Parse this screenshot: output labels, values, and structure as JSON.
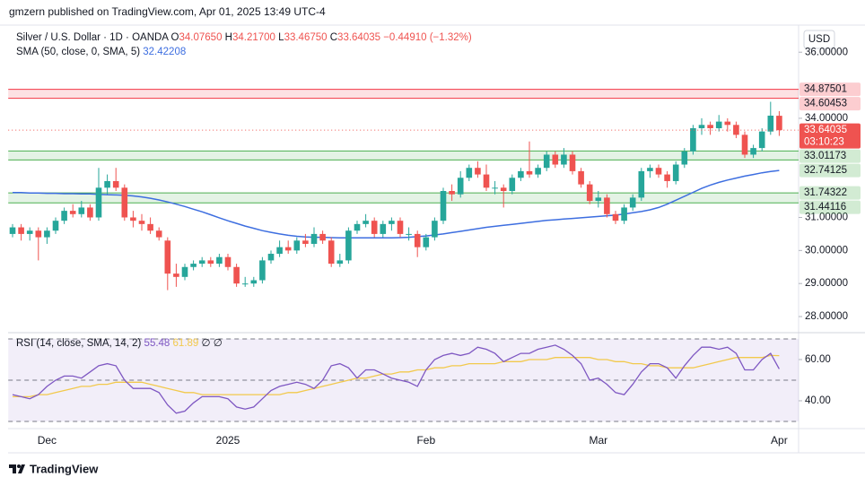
{
  "header": "gmzern published on TradingView.com, Apr 01, 2025 13:49 UTC-4",
  "footer": "TradingView",
  "chart_data": [
    {
      "type": "candlestick",
      "title": "Silver / U.S. Dollar · 1D · OANDA",
      "legend_ohlc": [
        {
          "key": "O",
          "value": "34.07650"
        },
        {
          "key": "H",
          "value": "34.21700"
        },
        {
          "key": "L",
          "value": "33.46750"
        },
        {
          "key": "C",
          "value": "33.64035"
        }
      ],
      "change": "−0.44910 (−1.32%)",
      "currency": "USD",
      "countdown": "03:10:23",
      "up_color": "#26a69a",
      "down_color": "#ef5350",
      "categories": [
        null,
        null,
        null,
        null,
        "Dec",
        null,
        null,
        null,
        null,
        null,
        null,
        null,
        null,
        null,
        null,
        null,
        null,
        null,
        null,
        null,
        null,
        null,
        null,
        null,
        null,
        "2025",
        null,
        null,
        null,
        null,
        null,
        null,
        null,
        null,
        null,
        null,
        null,
        null,
        null,
        null,
        null,
        null,
        null,
        null,
        null,
        null,
        null,
        null,
        "Feb",
        null,
        null,
        null,
        null,
        null,
        null,
        null,
        null,
        null,
        null,
        null,
        null,
        null,
        null,
        null,
        null,
        null,
        null,
        null,
        "Mar",
        null,
        null,
        null,
        null,
        null,
        null,
        null,
        null,
        null,
        null,
        null,
        null,
        null,
        null,
        null,
        null,
        null,
        null,
        null,
        null,
        "Apr"
      ],
      "ohlc": [
        [
          30.5,
          30.8,
          30.4,
          30.7
        ],
        [
          30.7,
          30.8,
          30.3,
          30.5
        ],
        [
          30.5,
          30.7,
          30.3,
          30.6
        ],
        [
          30.6,
          30.7,
          29.7,
          30.4
        ],
        [
          30.4,
          30.7,
          30.2,
          30.6
        ],
        [
          30.6,
          31.0,
          30.5,
          30.9
        ],
        [
          30.9,
          31.3,
          30.8,
          31.2
        ],
        [
          31.2,
          31.4,
          31.0,
          31.1
        ],
        [
          31.1,
          31.5,
          31.0,
          31.3
        ],
        [
          31.3,
          31.4,
          30.9,
          31.0
        ],
        [
          31.0,
          32.5,
          30.9,
          31.9
        ],
        [
          31.9,
          32.3,
          31.7,
          32.1
        ],
        [
          32.1,
          32.5,
          31.8,
          31.9
        ],
        [
          31.9,
          32.0,
          30.9,
          31.0
        ],
        [
          31.0,
          31.2,
          30.7,
          30.9
        ],
        [
          30.9,
          31.1,
          30.6,
          30.8
        ],
        [
          30.8,
          31.0,
          30.5,
          30.6
        ],
        [
          30.6,
          30.7,
          30.3,
          30.4
        ],
        [
          30.3,
          30.4,
          28.8,
          29.3
        ],
        [
          29.3,
          29.6,
          28.9,
          29.2
        ],
        [
          29.2,
          29.6,
          29.1,
          29.5
        ],
        [
          29.5,
          29.7,
          29.4,
          29.6
        ],
        [
          29.6,
          29.8,
          29.5,
          29.7
        ],
        [
          29.7,
          29.8,
          29.5,
          29.6
        ],
        [
          29.6,
          29.9,
          29.5,
          29.8
        ],
        [
          29.8,
          29.9,
          29.4,
          29.5
        ],
        [
          29.5,
          29.6,
          28.9,
          29.0
        ],
        [
          29.0,
          29.2,
          28.9,
          29.0
        ],
        [
          29.0,
          29.2,
          28.9,
          29.1
        ],
        [
          29.1,
          29.8,
          29.0,
          29.7
        ],
        [
          29.7,
          30.0,
          29.6,
          29.9
        ],
        [
          29.9,
          30.3,
          29.8,
          30.1
        ],
        [
          30.1,
          30.3,
          29.9,
          30.0
        ],
        [
          30.0,
          30.4,
          29.9,
          30.3
        ],
        [
          30.3,
          30.5,
          30.1,
          30.2
        ],
        [
          30.2,
          30.7,
          30.1,
          30.5
        ],
        [
          30.5,
          30.6,
          30.2,
          30.3
        ],
        [
          30.3,
          30.4,
          29.5,
          29.6
        ],
        [
          29.6,
          29.9,
          29.5,
          29.7
        ],
        [
          29.7,
          30.7,
          29.6,
          30.6
        ],
        [
          30.6,
          30.9,
          30.5,
          30.8
        ],
        [
          30.8,
          31.1,
          30.7,
          30.9
        ],
        [
          30.9,
          31.0,
          30.4,
          30.5
        ],
        [
          30.5,
          30.9,
          30.4,
          30.8
        ],
        [
          30.8,
          31.0,
          30.6,
          30.9
        ],
        [
          30.9,
          31.0,
          30.4,
          30.5
        ],
        [
          30.5,
          30.7,
          30.3,
          30.5
        ],
        [
          30.5,
          30.6,
          29.8,
          30.1
        ],
        [
          30.1,
          30.5,
          30.0,
          30.4
        ],
        [
          30.4,
          31.0,
          30.3,
          30.9
        ],
        [
          30.9,
          31.9,
          30.8,
          31.8
        ],
        [
          31.8,
          32.0,
          31.5,
          31.7
        ],
        [
          31.7,
          32.4,
          31.6,
          32.2
        ],
        [
          32.2,
          32.6,
          32.1,
          32.5
        ],
        [
          32.5,
          32.7,
          32.2,
          32.3
        ],
        [
          32.3,
          32.6,
          31.8,
          31.9
        ],
        [
          31.9,
          32.1,
          31.7,
          31.9
        ],
        [
          31.9,
          32.0,
          31.3,
          31.8
        ],
        [
          31.8,
          32.3,
          31.7,
          32.2
        ],
        [
          32.2,
          32.5,
          32.1,
          32.4
        ],
        [
          32.4,
          33.3,
          32.2,
          32.3
        ],
        [
          32.3,
          32.6,
          32.2,
          32.5
        ],
        [
          32.5,
          33.0,
          32.4,
          32.9
        ],
        [
          32.9,
          33.0,
          32.5,
          32.6
        ],
        [
          32.6,
          33.1,
          32.5,
          32.9
        ],
        [
          32.9,
          33.0,
          32.3,
          32.4
        ],
        [
          32.4,
          32.5,
          31.9,
          32.0
        ],
        [
          32.0,
          32.1,
          31.4,
          31.5
        ],
        [
          31.5,
          31.8,
          31.3,
          31.6
        ],
        [
          31.6,
          31.7,
          31.0,
          31.1
        ],
        [
          31.1,
          31.2,
          30.8,
          30.9
        ],
        [
          30.9,
          31.4,
          30.8,
          31.3
        ],
        [
          31.3,
          31.7,
          31.2,
          31.6
        ],
        [
          31.6,
          32.5,
          31.5,
          32.4
        ],
        [
          32.4,
          32.6,
          32.2,
          32.5
        ],
        [
          32.5,
          32.6,
          32.2,
          32.3
        ],
        [
          32.3,
          32.4,
          31.9,
          32.1
        ],
        [
          32.1,
          32.7,
          32.0,
          32.6
        ],
        [
          32.6,
          33.1,
          32.5,
          33.0
        ],
        [
          33.0,
          33.8,
          32.9,
          33.7
        ],
        [
          33.7,
          34.0,
          33.5,
          33.8
        ],
        [
          33.8,
          33.9,
          33.5,
          33.7
        ],
        [
          33.7,
          34.1,
          33.6,
          33.9
        ],
        [
          33.9,
          34.0,
          33.6,
          33.8
        ],
        [
          33.8,
          33.9,
          33.4,
          33.5
        ],
        [
          33.5,
          33.6,
          32.8,
          32.9
        ],
        [
          32.9,
          33.2,
          32.8,
          33.1
        ],
        [
          33.1,
          33.7,
          33.0,
          33.6
        ],
        [
          33.6,
          34.5,
          33.5,
          34.08
        ],
        [
          34.0765,
          34.217,
          33.4675,
          33.64035
        ]
      ],
      "series": [
        {
          "name": "SMA (50, close, 0, SMA, 5)",
          "color": "#3d6ee0",
          "values": [
            31.75,
            31.75,
            31.74,
            31.74,
            31.73,
            31.73,
            31.72,
            31.72,
            31.71,
            31.71,
            31.7,
            31.69,
            31.68,
            31.67,
            31.65,
            31.62,
            31.58,
            31.53,
            31.47,
            31.4,
            31.33,
            31.25,
            31.17,
            31.08,
            30.99,
            30.9,
            30.82,
            30.74,
            30.67,
            30.6,
            30.55,
            30.5,
            30.46,
            30.43,
            30.41,
            30.4,
            30.4,
            30.39,
            30.38,
            30.38,
            30.38,
            30.38,
            30.38,
            30.38,
            30.38,
            30.39,
            30.4,
            30.42,
            30.44,
            30.47,
            30.5,
            30.54,
            30.58,
            30.62,
            30.66,
            30.7,
            30.73,
            30.76,
            30.79,
            30.82,
            30.85,
            30.88,
            30.91,
            30.93,
            30.95,
            30.97,
            30.99,
            31.01,
            31.03,
            31.05,
            31.07,
            31.1,
            31.14,
            31.18,
            31.23,
            31.3,
            31.4,
            31.52,
            31.64,
            31.76,
            31.88,
            31.98,
            32.06,
            32.13,
            32.19,
            32.25,
            32.3,
            32.35,
            32.39,
            32.42208
          ]
        }
      ],
      "levels": [
        {
          "upper": 34.87501,
          "lower": 34.60453,
          "color": "#f23645"
        },
        {
          "upper": 33.01173,
          "lower": 32.74125,
          "color": "#4caf50"
        },
        {
          "upper": 31.74322,
          "lower": 31.44116,
          "color": "#4caf50"
        }
      ],
      "ylim": [
        27.54,
        36.82
      ],
      "yticks": [
        {
          "value": 36,
          "label": "36.00000"
        },
        {
          "value": 34,
          "label": "34.00000"
        },
        {
          "value": 31,
          "label": "31.00000"
        },
        {
          "value": 30,
          "label": "30.00000"
        },
        {
          "value": 29,
          "label": "29.00000"
        },
        {
          "value": 28,
          "label": "28.00000"
        }
      ]
    },
    {
      "type": "line",
      "legend_extra": "∅ ∅",
      "series": [
        {
          "name": "RSI (14, close, SMA, 14, 2)",
          "color": "#7e57c2",
          "values": [
            43,
            42,
            41,
            43,
            47,
            50,
            52,
            52,
            51,
            54,
            57,
            58,
            57,
            50,
            46,
            46,
            46,
            44,
            38,
            34,
            35,
            39,
            42,
            42,
            42,
            41,
            37,
            36,
            37,
            41,
            45,
            47,
            48,
            49,
            48,
            46,
            50,
            57,
            58,
            56,
            51,
            55,
            55,
            53,
            51,
            50,
            49,
            47,
            55,
            60,
            62,
            63,
            62,
            63,
            66,
            65,
            63,
            59,
            61,
            63,
            63,
            65,
            66,
            67,
            65,
            62,
            58,
            50,
            51,
            48,
            44,
            43,
            48,
            54,
            58,
            58,
            56,
            51,
            57,
            62,
            66,
            66,
            65,
            66,
            63,
            55,
            55,
            60,
            63,
            55.48
          ]
        },
        {
          "color": "#f2c94c",
          "values": [
            42,
            42,
            42,
            43,
            43,
            44,
            45,
            46,
            47,
            47,
            48,
            48,
            49,
            49,
            49,
            49,
            48,
            47,
            46,
            45,
            44,
            44,
            43,
            43,
            43,
            43,
            43,
            43,
            43,
            43,
            43,
            43,
            44,
            44,
            45,
            46,
            47,
            48,
            49,
            50,
            51,
            51,
            52,
            53,
            53,
            54,
            54,
            55,
            55,
            56,
            56,
            57,
            57,
            58,
            58,
            58,
            58,
            59,
            59,
            59,
            60,
            60,
            60,
            61,
            61,
            61,
            61,
            61,
            60,
            60,
            59,
            59,
            58,
            58,
            57,
            57,
            56,
            56,
            56,
            56,
            57,
            58,
            59,
            60,
            61,
            61,
            61,
            61,
            62,
            61.89
          ]
        }
      ],
      "levels": [
        70,
        50,
        30
      ],
      "ylim": [
        26.5,
        72.6
      ],
      "yticks": [
        {
          "value": 60,
          "label": "60.00"
        },
        {
          "value": 40,
          "label": "40.00"
        }
      ]
    }
  ]
}
